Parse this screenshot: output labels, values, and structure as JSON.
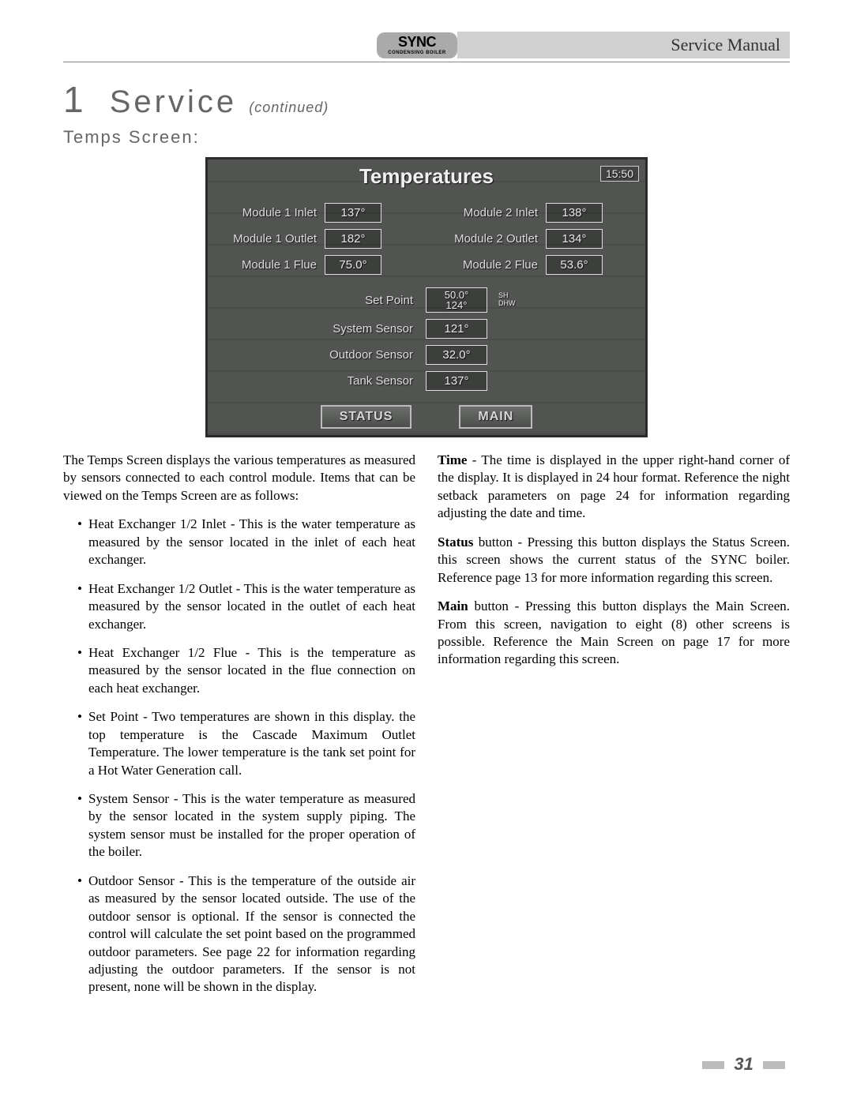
{
  "header": {
    "brand": "SYNC",
    "brand_sub": "CONDENSING BOILER",
    "manual": "Service Manual"
  },
  "section": {
    "number": "1",
    "title": "Service",
    "continued": "(continued)"
  },
  "subsection": "Temps Screen:",
  "screen": {
    "title": "Temperatures",
    "time": "15:50",
    "module1": {
      "inlet_label": "Module 1 Inlet",
      "inlet_value": "137°",
      "outlet_label": "Module 1 Outlet",
      "outlet_value": "182°",
      "flue_label": "Module 1 Flue",
      "flue_value": "75.0°"
    },
    "module2": {
      "inlet_label": "Module 2 Inlet",
      "inlet_value": "138°",
      "outlet_label": "Module 2 Outlet",
      "outlet_value": "134°",
      "flue_label": "Module 2 Flue",
      "flue_value": "53.6°"
    },
    "setpoint_label": "Set Point",
    "setpoint_value": "50.0°\n124°",
    "setpoint_tag1": "SH",
    "setpoint_tag2": "DHW",
    "system_label": "System Sensor",
    "system_value": "121°",
    "outdoor_label": "Outdoor Sensor",
    "outdoor_value": "32.0°",
    "tank_label": "Tank Sensor",
    "tank_value": "137°",
    "btn_status": "STATUS",
    "btn_main": "MAIN"
  },
  "left": {
    "intro": "The Temps Screen displays the various temperatures as measured by sensors connected to each control module. Items that can be viewed on the Temps Screen are as follows:",
    "b1": "Heat Exchanger 1/2 Inlet - This is the water temperature as measured by the sensor located in the inlet of each heat exchanger.",
    "b2": "Heat Exchanger 1/2 Outlet - This is the water temperature as measured by the sensor located in the outlet of each heat exchanger.",
    "b3": "Heat Exchanger 1/2 Flue - This is the temperature as measured by the sensor located in the flue connection on each heat exchanger.",
    "b4": "Set Point - Two temperatures are shown in this display. the top temperature is the Cascade Maximum Outlet Temperature.  The lower temperature is the tank set point for a Hot Water Generation call.",
    "b5": "System Sensor - This is the water temperature as measured by the sensor located in the system supply piping.  The system sensor must be installed for the proper operation of the boiler.",
    "b6": "Outdoor Sensor - This is the temperature of the outside air as measured by the sensor located outside.  The use of the outdoor sensor is optional.  If the sensor is connected the control will calculate the set point based on the programmed outdoor parameters.  See page 22 for information regarding adjusting the outdoor parameters.  If the sensor is not present, none will be shown in the display."
  },
  "right": {
    "time_label": "Time",
    "time_text": " - The time is displayed in the upper right-hand corner of the display.  It is displayed in 24 hour format.  Reference the night setback parameters on page 24 for information regarding adjusting the date and time.",
    "status_label": "Status",
    "status_text": " button - Pressing this button displays the Status Screen. this screen shows the current status of the SYNC boiler. Reference page 13 for more information regarding this screen.",
    "main_label": "Main",
    "main_text": " button - Pressing this button displays the Main Screen. From this screen, navigation to eight (8) other screens is possible.  Reference the Main Screen on page 17 for more information regarding this screen."
  },
  "page_number": "31",
  "colors": {
    "header_bg": "#d0d0d0",
    "heading_color": "#666666",
    "screen_bg": "#525452",
    "screen_grid": "#4a4c4a",
    "screen_border": "#2b2b2b",
    "screen_text": "#e8e8e8",
    "footer_bar": "#bbbbbb"
  }
}
